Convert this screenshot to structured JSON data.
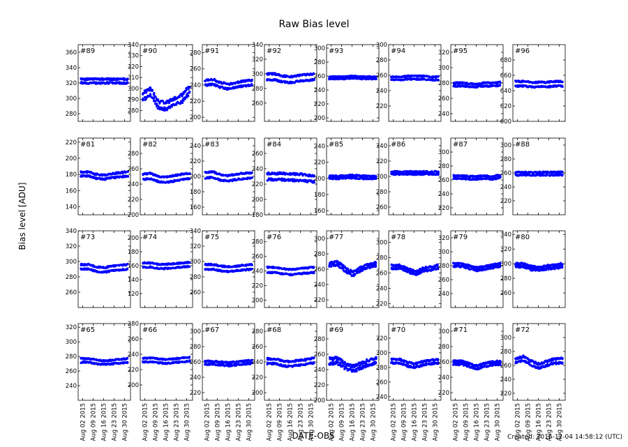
{
  "title": "Raw Bias level",
  "ylabel": "Bias level [ADU]",
  "xlabel": "DATE-OBS",
  "footer": "Created: 2016-12-04 14:58:12 (UTC)",
  "colors": {
    "marker": "#0000ff",
    "axes": "#000000"
  },
  "chart_data": {
    "type": "scatter",
    "grid": false,
    "x_tick_labels": [
      "Aug 02 2015",
      "Aug 09 2015",
      "Aug 16 2015",
      "Aug 23 2015",
      "Aug 30 2015"
    ],
    "xlim": [
      "2015-07-30",
      "2015-09-03"
    ],
    "panels": [
      {
        "label": "#89",
        "ylim": [
          270,
          370
        ],
        "yticks": [
          280,
          300,
          320,
          340,
          360
        ],
        "levels": [
          320,
          325
        ],
        "noise": 1.2,
        "wave": [
          0,
          0,
          0,
          0,
          0,
          0,
          0
        ]
      },
      {
        "label": "#90",
        "ylim": [
          270,
          340
        ],
        "yticks": [
          280,
          290,
          300,
          310,
          320,
          330,
          340
        ],
        "levels": [
          290,
          296
        ],
        "noise": 1.5,
        "wave": [
          0,
          4,
          -8,
          -9,
          -5,
          -2,
          6
        ]
      },
      {
        "label": "#91",
        "ylim": [
          195,
          290
        ],
        "yticks": [
          200,
          220,
          240,
          260,
          280
        ],
        "levels": [
          240,
          246
        ],
        "noise": 1.2,
        "wave": [
          0,
          1,
          -3,
          -5,
          -3,
          -1,
          0
        ]
      },
      {
        "label": "#92",
        "ylim": [
          235,
          340
        ],
        "yticks": [
          260,
          280,
          300,
          320,
          340
        ],
        "levels": [
          292,
          300
        ],
        "noise": 1.2,
        "wave": [
          0,
          0,
          -3,
          -4,
          -2,
          -1,
          0
        ]
      },
      {
        "label": "#93",
        "ylim": [
          195,
          305
        ],
        "yticks": [
          200,
          220,
          240,
          260,
          280,
          300
        ],
        "levels": [
          256,
          259
        ],
        "noise": 0.8,
        "wave": [
          0,
          0,
          0,
          1,
          0,
          0,
          0
        ]
      },
      {
        "label": "#94",
        "ylim": [
          200,
          300
        ],
        "yticks": [
          220,
          240,
          260,
          280,
          300
        ],
        "levels": [
          254,
          258
        ],
        "noise": 0.8,
        "wave": [
          0,
          0,
          1,
          1,
          1,
          0,
          0
        ]
      },
      {
        "label": "#95",
        "ylim": [
          230,
          330
        ],
        "yticks": [
          240,
          260,
          280,
          300,
          320
        ],
        "levels": [
          276,
          280
        ],
        "noise": 1,
        "wave": [
          0,
          0,
          -1,
          -1,
          0,
          0,
          1
        ]
      },
      {
        "label": "#96",
        "ylim": [
          600,
          700
        ],
        "yticks": [
          600,
          620,
          640,
          660,
          680
        ],
        "levels": [
          646,
          652
        ],
        "noise": 1,
        "wave": [
          0,
          0,
          -1,
          -1,
          -1,
          0,
          0
        ]
      },
      {
        "label": "#81",
        "ylim": [
          130,
          225
        ],
        "yticks": [
          140,
          160,
          180,
          200,
          220
        ],
        "levels": [
          178,
          183
        ],
        "noise": 1,
        "wave": [
          0,
          0,
          -3,
          -4,
          -2,
          -1,
          0
        ]
      },
      {
        "label": "#82",
        "ylim": [
          200,
          300
        ],
        "yticks": [
          200,
          220,
          240,
          260,
          280
        ],
        "levels": [
          246,
          253
        ],
        "noise": 1,
        "wave": [
          0,
          1,
          -3,
          -4,
          -2,
          0,
          1
        ]
      },
      {
        "label": "#83",
        "ylim": [
          150,
          250
        ],
        "yticks": [
          160,
          180,
          200,
          220,
          240
        ],
        "levels": [
          198,
          205
        ],
        "noise": 1,
        "wave": [
          0,
          1,
          -3,
          -4,
          -2,
          -1,
          0
        ]
      },
      {
        "label": "#84",
        "ylim": [
          180,
          280
        ],
        "yticks": [
          180,
          200,
          220,
          240,
          260
        ],
        "levels": [
          226,
          234
        ],
        "noise": 1.5,
        "wave": [
          0,
          0,
          0,
          -1,
          -1,
          -2,
          -3
        ]
      },
      {
        "label": "#85",
        "ylim": [
          155,
          250
        ],
        "yticks": [
          160,
          180,
          200,
          220,
          240
        ],
        "levels": [
          200,
          203
        ],
        "noise": 1,
        "wave": [
          0,
          0,
          0,
          1,
          0,
          0,
          0
        ]
      },
      {
        "label": "#86",
        "ylim": [
          250,
          350
        ],
        "yticks": [
          260,
          280,
          300,
          320,
          340
        ],
        "levels": [
          303,
          306
        ],
        "noise": 1,
        "wave": [
          0,
          0,
          0,
          0,
          0,
          0,
          0
        ]
      },
      {
        "label": "#87",
        "ylim": [
          210,
          320
        ],
        "yticks": [
          220,
          240,
          260,
          280,
          300
        ],
        "levels": [
          262,
          266
        ],
        "noise": 1,
        "wave": [
          0,
          0,
          -1,
          -1,
          0,
          -1,
          1
        ]
      },
      {
        "label": "#88",
        "ylim": [
          200,
          310
        ],
        "yticks": [
          220,
          240,
          260,
          280,
          300
        ],
        "levels": [
          257,
          261
        ],
        "noise": 1,
        "wave": [
          0,
          0,
          0,
          0,
          0,
          0,
          0
        ]
      },
      {
        "label": "#73",
        "ylim": [
          240,
          340
        ],
        "yticks": [
          260,
          280,
          300,
          320,
          340
        ],
        "levels": [
          290,
          296
        ],
        "noise": 1,
        "wave": [
          0,
          0,
          -3,
          -4,
          -2,
          -1,
          0
        ]
      },
      {
        "label": "#74",
        "ylim": [
          100,
          210
        ],
        "yticks": [
          120,
          140,
          160,
          180,
          200
        ],
        "levels": [
          158,
          164
        ],
        "noise": 1,
        "wave": [
          0,
          0,
          -2,
          -2,
          -1,
          0,
          1
        ]
      },
      {
        "label": "#75",
        "ylim": [
          240,
          340
        ],
        "yticks": [
          260,
          280,
          300,
          320,
          340
        ],
        "levels": [
          290,
          296
        ],
        "noise": 1,
        "wave": [
          0,
          0,
          -2,
          -3,
          -2,
          -1,
          0
        ]
      },
      {
        "label": "#76",
        "ylim": [
          190,
          295
        ],
        "yticks": [
          200,
          220,
          240,
          260,
          280
        ],
        "levels": [
          238,
          245
        ],
        "noise": 1,
        "wave": [
          0,
          0,
          -2,
          -3,
          -2,
          -1,
          0
        ]
      },
      {
        "label": "#77",
        "ylim": [
          210,
          310
        ],
        "yticks": [
          220,
          240,
          260,
          280,
          300
        ],
        "levels": [
          264,
          268
        ],
        "noise": 1.5,
        "wave": [
          0,
          2,
          -6,
          -12,
          -6,
          -2,
          0
        ]
      },
      {
        "label": "#78",
        "ylim": [
          215,
          315
        ],
        "yticks": [
          220,
          240,
          260,
          280,
          300
        ],
        "levels": [
          266,
          270
        ],
        "noise": 1.2,
        "wave": [
          0,
          0,
          -4,
          -8,
          -4,
          -2,
          0
        ]
      },
      {
        "label": "#79",
        "ylim": [
          220,
          330
        ],
        "yticks": [
          240,
          260,
          280,
          300,
          320
        ],
        "levels": [
          279,
          283
        ],
        "noise": 1.2,
        "wave": [
          0,
          0,
          -3,
          -6,
          -4,
          -2,
          0
        ]
      },
      {
        "label": "#80",
        "ylim": [
          240,
          345
        ],
        "yticks": [
          260,
          280,
          300,
          320,
          340
        ],
        "levels": [
          296,
          300
        ],
        "noise": 1.5,
        "wave": [
          0,
          0,
          -4,
          -5,
          -3,
          -2,
          0
        ]
      },
      {
        "label": "#65",
        "ylim": [
          220,
          325
        ],
        "yticks": [
          240,
          260,
          280,
          300,
          320
        ],
        "levels": [
          272,
          277
        ],
        "noise": 1,
        "wave": [
          0,
          0,
          -2,
          -3,
          -2,
          -1,
          0
        ]
      },
      {
        "label": "#66",
        "ylim": [
          180,
          280
        ],
        "yticks": [
          200,
          220,
          240,
          260,
          280
        ],
        "levels": [
          230,
          235
        ],
        "noise": 1,
        "wave": [
          0,
          0,
          -1,
          -2,
          -1,
          0,
          1
        ]
      },
      {
        "label": "#67",
        "ylim": [
          210,
          310
        ],
        "yticks": [
          220,
          240,
          260,
          280,
          300
        ],
        "levels": [
          257,
          261
        ],
        "noise": 1,
        "wave": [
          0,
          0,
          -1,
          -2,
          -1,
          0,
          1
        ]
      },
      {
        "label": "#68",
        "ylim": [
          190,
          290
        ],
        "yticks": [
          200,
          220,
          240,
          260,
          280
        ],
        "levels": [
          238,
          244
        ],
        "noise": 1.2,
        "wave": [
          0,
          0,
          -3,
          -4,
          -2,
          -1,
          1
        ]
      },
      {
        "label": "#69",
        "ylim": [
          200,
          300
        ],
        "yticks": [
          200,
          220,
          240,
          260,
          280
        ],
        "levels": [
          248,
          254
        ],
        "noise": 2,
        "wave": [
          0,
          1,
          -6,
          -10,
          -6,
          -2,
          1
        ]
      },
      {
        "label": "#70",
        "ylim": [
          235,
          340
        ],
        "yticks": [
          240,
          260,
          280,
          300,
          320
        ],
        "levels": [
          286,
          291
        ],
        "noise": 1.2,
        "wave": [
          0,
          0,
          -4,
          -6,
          -3,
          -1,
          0
        ]
      },
      {
        "label": "#71",
        "ylim": [
          210,
          310
        ],
        "yticks": [
          220,
          240,
          260,
          280,
          300
        ],
        "levels": [
          257,
          261
        ],
        "noise": 1.2,
        "wave": [
          0,
          0,
          -3,
          -6,
          -3,
          -1,
          0
        ]
      },
      {
        "label": "#72",
        "ylim": [
          210,
          320
        ],
        "yticks": [
          220,
          240,
          260,
          280,
          300
        ],
        "levels": [
          264,
          270
        ],
        "noise": 1.5,
        "wave": [
          0,
          3,
          -4,
          -8,
          -4,
          -1,
          0
        ]
      }
    ]
  }
}
